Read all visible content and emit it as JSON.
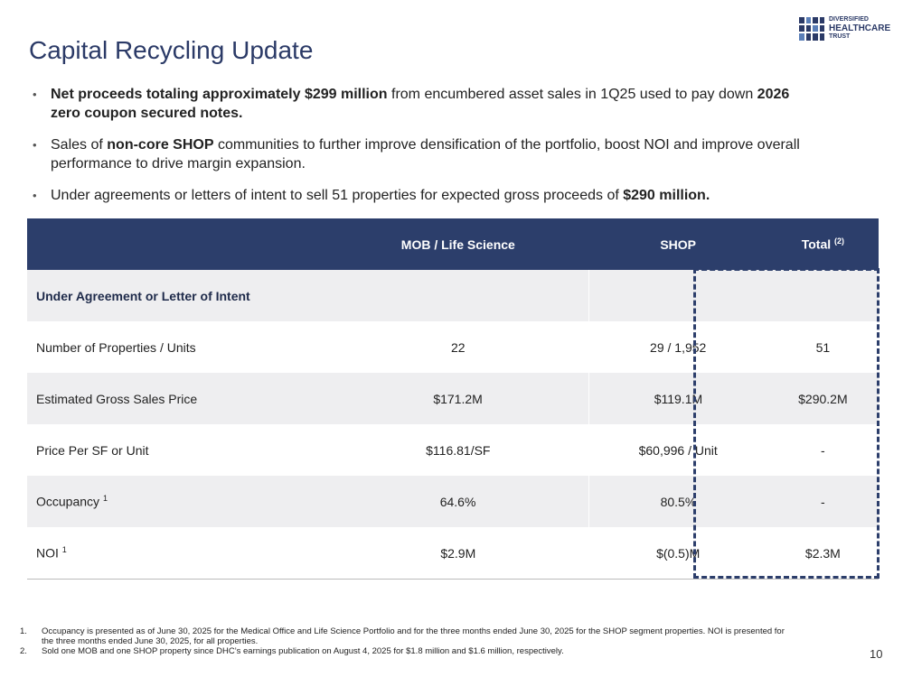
{
  "logo": {
    "line1": "DIVERSIFIED",
    "line2": "HEALTHCARE",
    "line3": "TRUST"
  },
  "title": "Capital Recycling Update",
  "bullets": [
    [
      {
        "text": "Net proceeds totaling approximately $299 million",
        "bold": true
      },
      {
        "text": " from encumbered asset sales in 1Q25 used to pay down "
      },
      {
        "text": "2026 zero coupon secured notes.",
        "bold": true
      }
    ],
    [
      {
        "text": "Sales of "
      },
      {
        "text": "non-core SHOP",
        "bold": true
      },
      {
        "text": " communities to further improve densification of the portfolio, boost NOI and improve overall performance to drive margin expansion."
      }
    ],
    [
      {
        "text": "Under agreements or letters of intent to sell 51 properties for expected gross proceeds of "
      },
      {
        "text": "$290 million.",
        "bold": true
      }
    ]
  ],
  "table": {
    "columns": [
      {
        "text": "MOB / Life Science"
      },
      {
        "text": "SHOP"
      },
      {
        "text": "Total",
        "note": "(2)"
      }
    ],
    "section": "Under Agreement or Letter of Intent",
    "rows": [
      {
        "label": {
          "text": "Number of Properties / Units"
        },
        "cells": [
          "22",
          "29 / 1,952",
          "51"
        ]
      },
      {
        "label": {
          "text": "Estimated Gross Sales Price"
        },
        "cells": [
          "$171.2M",
          "$119.1M",
          "$290.2M"
        ]
      },
      {
        "label": {
          "text": "Price Per SF or Unit"
        },
        "cells": [
          "$116.81/SF",
          "$60,996 / Unit",
          "-"
        ]
      },
      {
        "label": {
          "text": "Occupancy",
          "note": "1"
        },
        "cells": [
          "64.6%",
          "80.5%",
          "-"
        ]
      },
      {
        "label": {
          "text": "NOI",
          "note": "1"
        },
        "cells": [
          "$2.9M",
          "$(0.5)M",
          "$2.3M"
        ]
      }
    ]
  },
  "footnotes": [
    {
      "marker": "1.",
      "text": "Occupancy is presented as of June 30, 2025 for the Medical Office and Life Science Portfolio and for the three months ended June 30, 2025 for the SHOP segment properties. NOI is presented for the three months ended June 30, 2025, for all properties."
    },
    {
      "marker": "2.",
      "text": "Sold one MOB and one SHOP property since DHC’s earnings publication on August 4, 2025 for $1.8 million and $1.6 million, respectively."
    }
  ],
  "page_number": "10"
}
